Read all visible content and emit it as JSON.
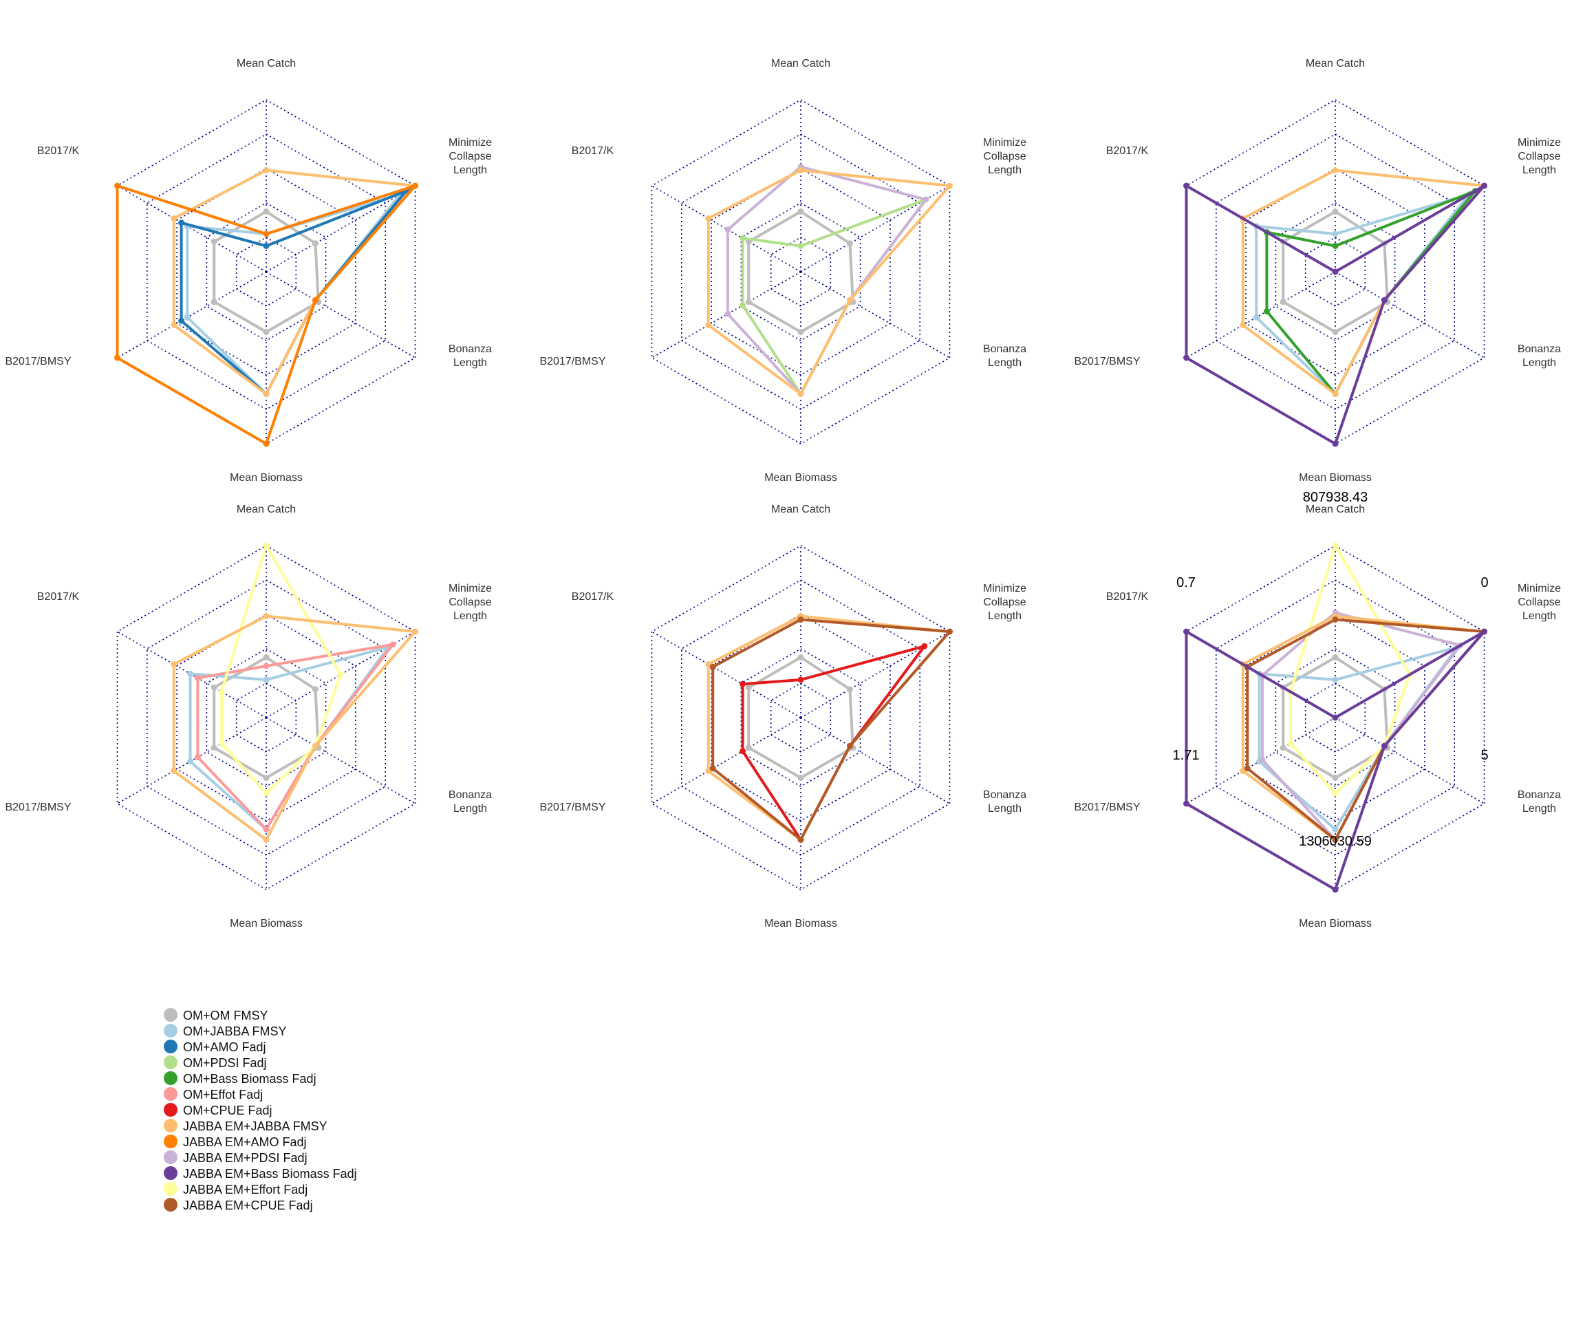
{
  "axes": [
    {
      "key": "catch",
      "label_lines": [
        "Mean Catch"
      ]
    },
    {
      "key": "collapse",
      "label_lines": [
        "Minimize",
        "Collapse",
        "Length"
      ]
    },
    {
      "key": "bonanza",
      "label_lines": [
        "Bonanza",
        "Length"
      ]
    },
    {
      "key": "biomass",
      "label_lines": [
        "Mean Biomass"
      ]
    },
    {
      "key": "bmsy",
      "label_lines": [
        "B2017/BMSY"
      ]
    },
    {
      "key": "bk",
      "label_lines": [
        "B2017/K"
      ]
    }
  ],
  "grid_color": "#00008b",
  "legend": {
    "items": [
      {
        "label": "OM+OM FMSY",
        "color": "#bdbdbd"
      },
      {
        "label": "OM+JABBA FMSY",
        "color": "#a6cee3"
      },
      {
        "label": "OM+AMO Fadj",
        "color": "#1f78b4"
      },
      {
        "label": "OM+PDSI Fadj",
        "color": "#b2df8a"
      },
      {
        "label": "OM+Bass Biomass Fadj",
        "color": "#33a02c"
      },
      {
        "label": "OM+Effot Fadj",
        "color": "#fb9a99"
      },
      {
        "label": "OM+CPUE Fadj",
        "color": "#e31a1c"
      },
      {
        "label": "JABBA EM+JABBA FMSY",
        "color": "#fdbf6f"
      },
      {
        "label": "JABBA EM+AMO Fadj",
        "color": "#ff7f00"
      },
      {
        "label": "JABBA EM+PDSI Fadj",
        "color": "#cab2d6"
      },
      {
        "label": "JABBA EM+Bass Biomass Fadj",
        "color": "#6a3d9a"
      },
      {
        "label": "JABBA EM+Effort Fadj",
        "color": "#ffff99"
      },
      {
        "label": "JABBA EM+CPUE Fadj",
        "color": "#b15928"
      }
    ]
  },
  "scale_labels": {
    "catch_max": "807938.43",
    "collapse_max": "0",
    "bonanza_max": "5",
    "biomass_max": "1306030.59",
    "bmsy_max": "1.71",
    "bk_max": "0.7"
  },
  "chart_data": [
    {
      "type": "radar",
      "axes": [
        "Mean Catch",
        "Minimize Collapse Length",
        "Bonanza Length",
        "Mean Biomass",
        "B2017/BMSY",
        "B2017/K"
      ],
      "scale": "fraction of maximum (0-1)",
      "series": [
        {
          "name": "OM+OM FMSY",
          "values": [
            0.35,
            0.33,
            0.35,
            0.35,
            0.35,
            0.35
          ]
        },
        {
          "name": "OM+JABBA FMSY",
          "values": [
            0.22,
            0.9,
            0.33,
            0.71,
            0.53,
            0.53
          ]
        },
        {
          "name": "OM+AMO Fadj",
          "values": [
            0.15,
            0.94,
            0.33,
            0.71,
            0.57,
            0.57
          ]
        },
        {
          "name": "JABBA EM+JABBA FMSY",
          "values": [
            0.59,
            1.0,
            0.33,
            0.71,
            0.62,
            0.62
          ]
        },
        {
          "name": "JABBA EM+AMO Fadj",
          "values": [
            0.22,
            1.0,
            0.33,
            1.0,
            1.0,
            1.0
          ]
        }
      ]
    },
    {
      "type": "radar",
      "axes": [
        "Mean Catch",
        "Minimize Collapse Length",
        "Bonanza Length",
        "Mean Biomass",
        "B2017/BMSY",
        "B2017/K"
      ],
      "scale": "fraction of maximum (0-1)",
      "series": [
        {
          "name": "OM+OM FMSY",
          "values": [
            0.35,
            0.33,
            0.35,
            0.35,
            0.35,
            0.35
          ]
        },
        {
          "name": "OM+PDSI Fadj",
          "values": [
            0.15,
            0.84,
            0.33,
            0.71,
            0.39,
            0.39
          ]
        },
        {
          "name": "JABBA EM+PDSI Fadj",
          "values": [
            0.61,
            0.84,
            0.33,
            0.71,
            0.49,
            0.49
          ]
        },
        {
          "name": "JABBA EM+JABBA FMSY",
          "values": [
            0.59,
            1.0,
            0.33,
            0.71,
            0.62,
            0.62
          ]
        }
      ]
    },
    {
      "type": "radar",
      "axes": [
        "Mean Catch",
        "Minimize Collapse Length",
        "Bonanza Length",
        "Mean Biomass",
        "B2017/BMSY",
        "B2017/K"
      ],
      "scale": "fraction of maximum (0-1)",
      "series": [
        {
          "name": "OM+OM FMSY",
          "values": [
            0.35,
            0.33,
            0.35,
            0.35,
            0.35,
            0.35
          ]
        },
        {
          "name": "OM+JABBA FMSY",
          "values": [
            0.22,
            0.9,
            0.33,
            0.71,
            0.53,
            0.53
          ]
        },
        {
          "name": "OM+Bass Biomass Fadj",
          "values": [
            0.15,
            0.94,
            0.33,
            0.71,
            0.46,
            0.46
          ]
        },
        {
          "name": "JABBA EM+JABBA FMSY",
          "values": [
            0.59,
            1.0,
            0.33,
            0.71,
            0.62,
            0.62
          ]
        },
        {
          "name": "JABBA EM+Bass Biomass Fadj",
          "values": [
            0.0,
            1.0,
            0.33,
            1.0,
            1.0,
            1.0
          ]
        }
      ]
    },
    {
      "type": "radar",
      "axes": [
        "Mean Catch",
        "Minimize Collapse Length",
        "Bonanza Length",
        "Mean Biomass",
        "B2017/BMSY",
        "B2017/K"
      ],
      "scale": "fraction of maximum (0-1)",
      "series": [
        {
          "name": "OM+OM FMSY",
          "values": [
            0.35,
            0.33,
            0.35,
            0.35,
            0.35,
            0.35
          ]
        },
        {
          "name": "OM+JABBA FMSY",
          "values": [
            0.22,
            0.82,
            0.33,
            0.65,
            0.51,
            0.51
          ]
        },
        {
          "name": "OM+Effot Fadj",
          "values": [
            0.3,
            0.85,
            0.33,
            0.65,
            0.46,
            0.46
          ]
        },
        {
          "name": "JABBA EM+Effort Fadj",
          "values": [
            1.0,
            0.5,
            0.33,
            0.44,
            0.3,
            0.3
          ]
        },
        {
          "name": "JABBA EM+JABBA FMSY",
          "values": [
            0.59,
            1.0,
            0.33,
            0.71,
            0.62,
            0.62
          ]
        }
      ]
    },
    {
      "type": "radar",
      "axes": [
        "Mean Catch",
        "Minimize Collapse Length",
        "Bonanza Length",
        "Mean Biomass",
        "B2017/BMSY",
        "B2017/K"
      ],
      "scale": "fraction of maximum (0-1)",
      "series": [
        {
          "name": "OM+OM FMSY",
          "values": [
            0.35,
            0.33,
            0.35,
            0.35,
            0.35,
            0.35
          ]
        },
        {
          "name": "OM+CPUE Fadj",
          "values": [
            0.22,
            0.83,
            0.33,
            0.71,
            0.39,
            0.39
          ]
        },
        {
          "name": "JABBA EM+JABBA FMSY",
          "values": [
            0.59,
            1.0,
            0.33,
            0.71,
            0.62,
            0.62
          ]
        },
        {
          "name": "JABBA EM+CPUE Fadj",
          "values": [
            0.57,
            1.0,
            0.33,
            0.71,
            0.59,
            0.59
          ]
        }
      ]
    },
    {
      "type": "radar",
      "axes": [
        "Mean Catch",
        "Minimize Collapse Length",
        "Bonanza Length",
        "Mean Biomass",
        "B2017/BMSY",
        "B2017/K"
      ],
      "scale": "fraction of maximum (0-1)",
      "axis_max_labels": [
        "807938.43",
        "0",
        "5",
        "1306030.59",
        "1.71",
        "0.7"
      ],
      "series": [
        {
          "name": "OM+OM FMSY",
          "values": [
            0.35,
            0.33,
            0.35,
            0.35,
            0.35,
            0.35
          ]
        },
        {
          "name": "OM+JABBA FMSY",
          "values": [
            0.22,
            0.82,
            0.33,
            0.65,
            0.51,
            0.51
          ]
        },
        {
          "name": "JABBA EM+PDSI Fadj",
          "values": [
            0.61,
            0.84,
            0.33,
            0.71,
            0.49,
            0.49
          ]
        },
        {
          "name": "JABBA EM+Effort Fadj",
          "values": [
            1.0,
            0.5,
            0.33,
            0.44,
            0.3,
            0.3
          ]
        },
        {
          "name": "JABBA EM+JABBA FMSY",
          "values": [
            0.59,
            1.0,
            0.33,
            0.71,
            0.62,
            0.62
          ]
        },
        {
          "name": "JABBA EM+CPUE Fadj",
          "values": [
            0.57,
            1.0,
            0.33,
            0.71,
            0.59,
            0.59
          ]
        },
        {
          "name": "JABBA EM+Bass Biomass Fadj",
          "values": [
            0.0,
            1.0,
            0.33,
            1.0,
            1.0,
            1.0
          ]
        }
      ]
    }
  ]
}
